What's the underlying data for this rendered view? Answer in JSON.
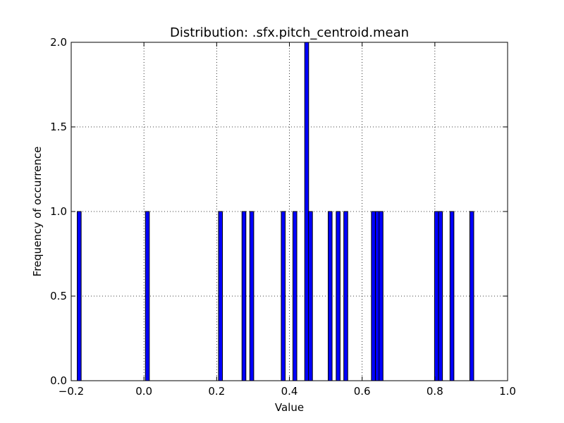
{
  "chart_data": {
    "type": "bar",
    "title": "Distribution: .sfx.pitch_centroid.mean",
    "xlabel": "Value",
    "ylabel": "Frequency of occurrence",
    "xlim": [
      -0.2,
      1.0
    ],
    "ylim": [
      0.0,
      2.0
    ],
    "xticks": [
      "−0.2",
      "0.0",
      "0.2",
      "0.4",
      "0.6",
      "0.8",
      "1.0"
    ],
    "yticks": [
      "0.0",
      "0.5",
      "1.0",
      "1.5",
      "2.0"
    ],
    "grid": true,
    "bar_color": "#0000ff",
    "bar_width": 0.0108,
    "bins": [
      {
        "x": -0.178,
        "count": 1
      },
      {
        "x": 0.0095,
        "count": 1
      },
      {
        "x": 0.2105,
        "count": 1
      },
      {
        "x": 0.275,
        "count": 1
      },
      {
        "x": 0.2965,
        "count": 1
      },
      {
        "x": 0.383,
        "count": 1
      },
      {
        "x": 0.415,
        "count": 1
      },
      {
        "x": 0.4475,
        "count": 2
      },
      {
        "x": 0.458,
        "count": 1
      },
      {
        "x": 0.512,
        "count": 1
      },
      {
        "x": 0.534,
        "count": 1
      },
      {
        "x": 0.555,
        "count": 1
      },
      {
        "x": 0.631,
        "count": 1
      },
      {
        "x": 0.642,
        "count": 1
      },
      {
        "x": 0.652,
        "count": 1
      },
      {
        "x": 0.8045,
        "count": 1
      },
      {
        "x": 0.8155,
        "count": 1
      },
      {
        "x": 0.847,
        "count": 1
      },
      {
        "x": 0.9015,
        "count": 1
      }
    ]
  }
}
